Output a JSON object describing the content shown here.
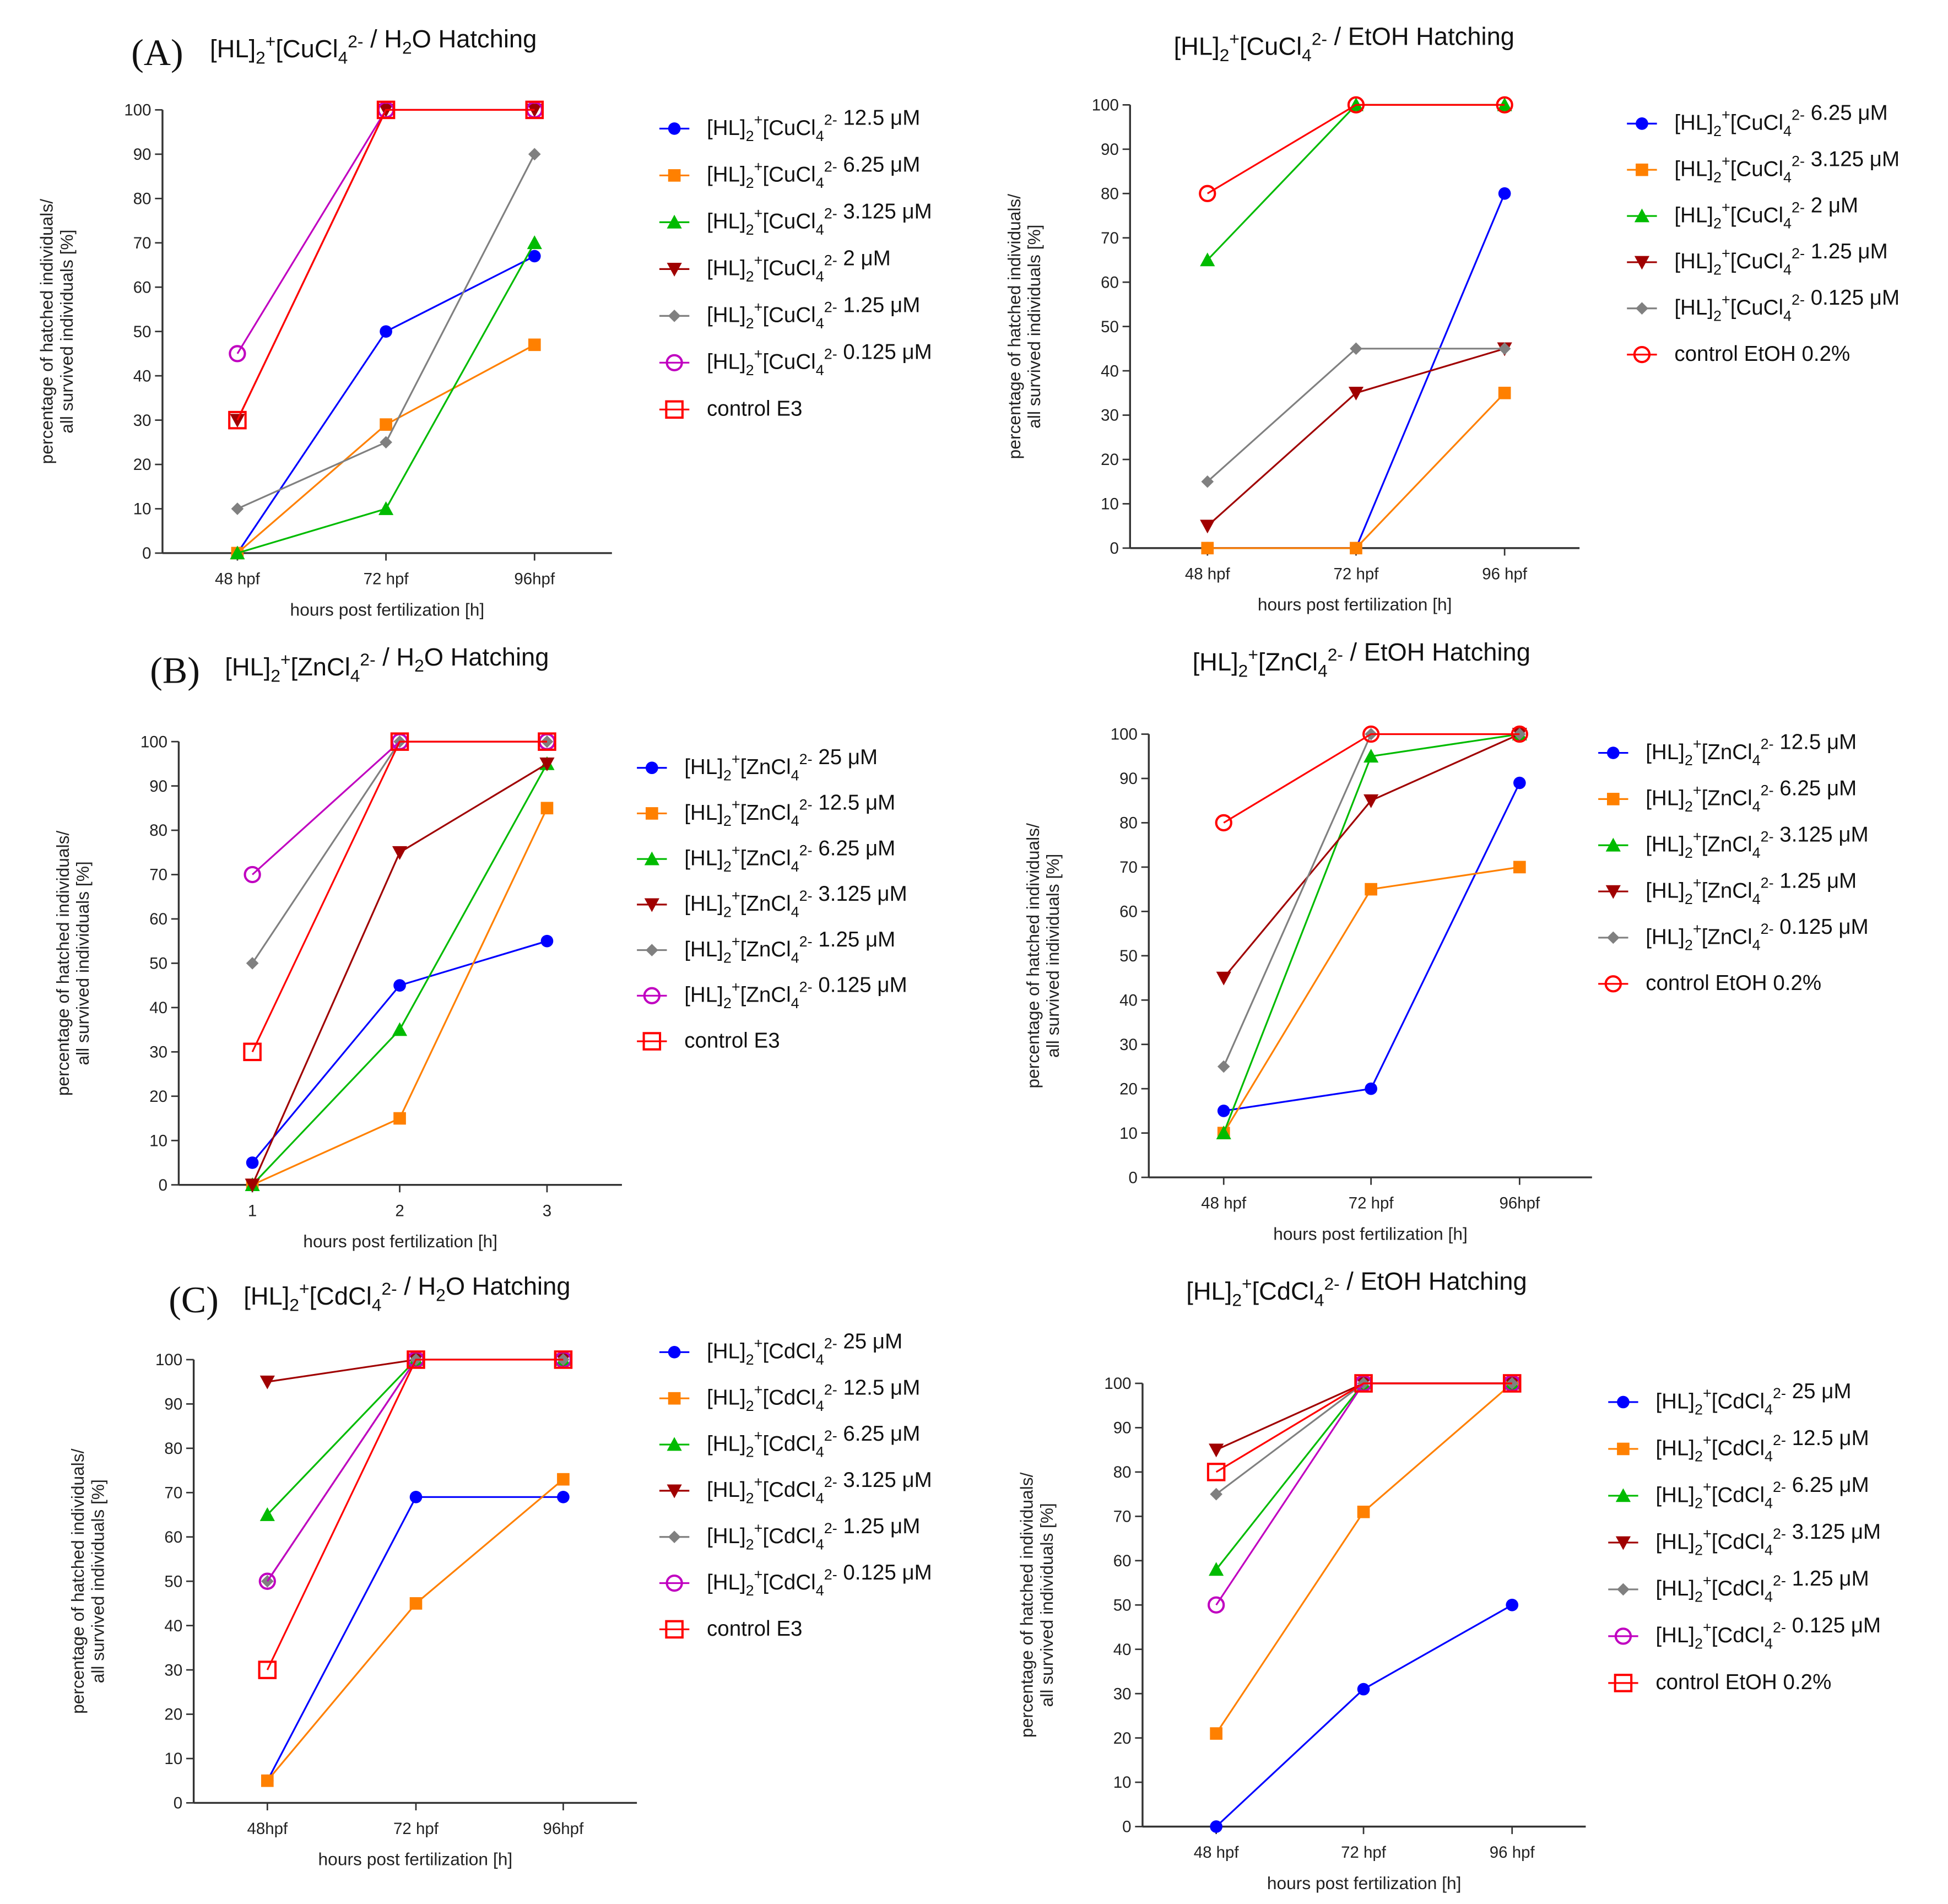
{
  "common": {
    "ylabel_line1": "percentage of hatched individuals/",
    "ylabel_line2": "all survived individuals [%]",
    "xlabel": "hours post fertilization [h]",
    "yticks": [
      "0",
      "10",
      "20",
      "30",
      "40",
      "50",
      "60",
      "70",
      "80",
      "90",
      "100"
    ]
  },
  "colors": {
    "blue": "#0000ff",
    "orange": "#ff8000",
    "green": "#00bb00",
    "darkred": "#a00000",
    "gray": "#808080",
    "magenta": "#c000c0",
    "red": "#ff0000"
  },
  "chart_data": [
    {
      "type": "line",
      "panel_label": "(A)",
      "formula": {
        "a": "[HL]",
        "a_sub": "2",
        "a_sup": "+",
        "b": "[CuCl",
        "b_sub": "4",
        "b_sup": "2-"
      },
      "title_pre": " / H",
      "title_sub": "2",
      "title_post": "O Hatching",
      "categories": [
        "48 hpf",
        "72 hpf",
        "96hpf"
      ],
      "ylim": [
        0,
        100
      ],
      "series": [
        {
          "conc": "12.5 μM",
          "color": "blue",
          "marker": "circle",
          "values": [
            0,
            50,
            67
          ]
        },
        {
          "conc": "6.25 μM",
          "color": "orange",
          "marker": "square",
          "values": [
            0,
            29,
            47
          ]
        },
        {
          "conc": "3.125 μM",
          "color": "green",
          "marker": "triangle-up",
          "values": [
            0,
            10,
            70
          ]
        },
        {
          "conc": "2 μM",
          "color": "darkred",
          "marker": "triangle-down",
          "values": [
            30,
            100,
            100
          ]
        },
        {
          "conc": "1.25 μM",
          "color": "gray",
          "marker": "diamond",
          "values": [
            10,
            25,
            90
          ]
        },
        {
          "conc": "0.125 μM",
          "color": "magenta",
          "marker": "open-circle",
          "values": [
            45,
            100,
            100
          ]
        },
        {
          "name": "control E3",
          "color": "red",
          "marker": "open-square",
          "values": [
            30,
            100,
            100
          ]
        }
      ]
    },
    {
      "type": "line",
      "panel_label": "",
      "formula": {
        "a": "[HL]",
        "a_sub": "2",
        "a_sup": "+",
        "b": "[CuCl",
        "b_sub": "4",
        "b_sup": "2-"
      },
      "title_pre": " / EtOH Hatching",
      "title_sub": "",
      "title_post": "",
      "categories": [
        "48 hpf",
        "72 hpf",
        "96 hpf"
      ],
      "ylim": [
        0,
        100
      ],
      "series": [
        {
          "conc": "6.25 μM",
          "color": "blue",
          "marker": "circle",
          "values": [
            0,
            0,
            80
          ]
        },
        {
          "conc": "3.125 μM",
          "color": "orange",
          "marker": "square",
          "values": [
            0,
            0,
            35
          ]
        },
        {
          "conc": "2 μM",
          "color": "green",
          "marker": "triangle-up",
          "values": [
            65,
            100,
            100
          ]
        },
        {
          "conc": "1.25 μM",
          "color": "darkred",
          "marker": "triangle-down",
          "values": [
            5,
            35,
            45
          ]
        },
        {
          "conc": "0.125 μM",
          "color": "gray",
          "marker": "diamond",
          "values": [
            15,
            45,
            45
          ]
        },
        {
          "name": "control EtOH 0.2%",
          "color": "red",
          "marker": "open-circle",
          "values": [
            80,
            100,
            100
          ]
        }
      ]
    },
    {
      "type": "line",
      "panel_label": "(B)",
      "formula": {
        "a": "[HL]",
        "a_sub": "2",
        "a_sup": "+",
        "b": "[ZnCl",
        "b_sub": "4",
        "b_sup": "2-"
      },
      "title_pre": " / H",
      "title_sub": "2",
      "title_post": "O  Hatching",
      "categories": [
        "1",
        "2",
        "3"
      ],
      "ylim": [
        0,
        100
      ],
      "series": [
        {
          "conc": "25 μM",
          "color": "blue",
          "marker": "circle",
          "values": [
            5,
            45,
            55
          ]
        },
        {
          "conc": "12.5 μM",
          "color": "orange",
          "marker": "square",
          "values": [
            0,
            15,
            85
          ]
        },
        {
          "conc": "6.25 μM",
          "color": "green",
          "marker": "triangle-up",
          "values": [
            0,
            35,
            95
          ]
        },
        {
          "conc": "3.125 μM",
          "color": "darkred",
          "marker": "triangle-down",
          "values": [
            0,
            75,
            95
          ]
        },
        {
          "conc": "1.25 μM",
          "color": "gray",
          "marker": "diamond",
          "values": [
            50,
            100,
            100
          ]
        },
        {
          "conc": "0.125 μM",
          "color": "magenta",
          "marker": "open-circle",
          "values": [
            70,
            100,
            100
          ]
        },
        {
          "name": "control E3",
          "color": "red",
          "marker": "open-square",
          "values": [
            30,
            100,
            100
          ]
        }
      ]
    },
    {
      "type": "line",
      "panel_label": "",
      "formula": {
        "a": "[HL]",
        "a_sub": "2",
        "a_sup": "+",
        "b": "[ZnCl",
        "b_sub": "4",
        "b_sup": "2-"
      },
      "title_pre": " / EtOH  Hatching",
      "title_sub": "",
      "title_post": "",
      "categories": [
        "48 hpf",
        "72 hpf",
        "96hpf"
      ],
      "ylim": [
        0,
        100
      ],
      "series": [
        {
          "conc": "12.5 μM",
          "color": "blue",
          "marker": "circle",
          "values": [
            15,
            20,
            89
          ]
        },
        {
          "conc": "6.25 μM",
          "color": "orange",
          "marker": "square",
          "values": [
            10,
            65,
            70
          ]
        },
        {
          "conc": "3.125 μM",
          "color": "green",
          "marker": "triangle-up",
          "values": [
            10,
            95,
            100
          ]
        },
        {
          "conc": "1.25 μM",
          "color": "darkred",
          "marker": "triangle-down",
          "values": [
            45,
            85,
            100
          ]
        },
        {
          "conc": "0.125 μM",
          "color": "gray",
          "marker": "diamond",
          "values": [
            25,
            100,
            100
          ]
        },
        {
          "name": "control EtOH 0.2%",
          "color": "red",
          "marker": "open-circle",
          "values": [
            80,
            100,
            100
          ]
        }
      ]
    },
    {
      "type": "line",
      "panel_label": "(C)",
      "formula": {
        "a": "[HL]",
        "a_sub": "2",
        "a_sup": "+",
        "b": "[CdCl",
        "b_sub": "4",
        "b_sup": "2-"
      },
      "title_pre": " / H",
      "title_sub": "2",
      "title_post": "O Hatching",
      "categories": [
        "48hpf",
        "72 hpf",
        "96hpf"
      ],
      "ylim": [
        0,
        100
      ],
      "series": [
        {
          "conc": "25 μM",
          "color": "blue",
          "marker": "circle",
          "values": [
            5,
            69,
            69
          ]
        },
        {
          "conc": "12.5 μM",
          "color": "orange",
          "marker": "square",
          "values": [
            5,
            45,
            73
          ]
        },
        {
          "conc": "6.25 μM",
          "color": "green",
          "marker": "triangle-up",
          "values": [
            65,
            100,
            100
          ]
        },
        {
          "conc": "3.125 μM",
          "color": "darkred",
          "marker": "triangle-down",
          "values": [
            95,
            100,
            100
          ]
        },
        {
          "conc": "1.25 μM",
          "color": "gray",
          "marker": "diamond",
          "values": [
            50,
            100,
            100
          ]
        },
        {
          "conc": "0.125 μM",
          "color": "magenta",
          "marker": "open-circle",
          "values": [
            50,
            100,
            100
          ]
        },
        {
          "name": "control E3",
          "color": "red",
          "marker": "open-square",
          "values": [
            30,
            100,
            100
          ]
        }
      ]
    },
    {
      "type": "line",
      "panel_label": "",
      "formula": {
        "a": "[HL]",
        "a_sub": "2",
        "a_sup": "+",
        "b": "[CdCl",
        "b_sub": "4",
        "b_sup": "2-"
      },
      "title_pre": " / EtOH Hatching",
      "title_sub": "",
      "title_post": "",
      "categories": [
        "48 hpf",
        "72 hpf",
        "96 hpf"
      ],
      "ylim": [
        0,
        100
      ],
      "series": [
        {
          "conc": "25 μM",
          "color": "blue",
          "marker": "circle",
          "values": [
            0,
            31,
            50
          ]
        },
        {
          "conc": "12.5 μM",
          "color": "orange",
          "marker": "square",
          "values": [
            21,
            71,
            100
          ]
        },
        {
          "conc": "6.25 μM",
          "color": "green",
          "marker": "triangle-up",
          "values": [
            58,
            100,
            100
          ]
        },
        {
          "conc": "3.125 μM",
          "color": "darkred",
          "marker": "triangle-down",
          "values": [
            85,
            100,
            100
          ]
        },
        {
          "conc": "1.25 μM",
          "color": "gray",
          "marker": "diamond",
          "values": [
            75,
            100,
            100
          ]
        },
        {
          "conc": "0.125 μM",
          "color": "magenta",
          "marker": "open-circle",
          "values": [
            50,
            100,
            100
          ]
        },
        {
          "name": "control EtOH 0.2%",
          "color": "red",
          "marker": "open-square",
          "values": [
            80,
            100,
            100
          ]
        }
      ]
    }
  ]
}
